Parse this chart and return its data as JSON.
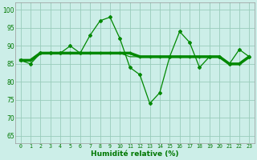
{
  "x": [
    0,
    1,
    2,
    3,
    4,
    5,
    6,
    7,
    8,
    9,
    10,
    11,
    12,
    13,
    14,
    15,
    16,
    17,
    18,
    19,
    20,
    21,
    22,
    23
  ],
  "series_jagged": [
    86,
    85,
    88,
    88,
    88,
    90,
    88,
    93,
    97,
    98,
    92,
    84,
    82,
    74,
    77,
    87,
    94,
    91,
    84,
    87,
    87,
    85,
    89,
    87
  ],
  "series_thick": [
    86,
    86,
    88,
    88,
    88,
    88,
    88,
    88,
    88,
    88,
    88,
    88,
    87,
    87,
    87,
    87,
    87,
    87,
    87,
    87,
    87,
    85,
    85,
    87
  ],
  "series_thin": [
    86,
    86,
    88,
    88,
    88,
    88,
    88,
    88,
    88,
    88,
    88,
    87,
    87,
    87,
    87,
    87,
    87,
    87,
    87,
    87,
    87,
    85,
    85,
    87
  ],
  "xlabel": "Humidité relative (%)",
  "yticks": [
    65,
    70,
    75,
    80,
    85,
    90,
    95,
    100
  ],
  "ylim": [
    63,
    102
  ],
  "xlim": [
    -0.5,
    23.5
  ],
  "line_color": "#008800",
  "bg_color": "#cceee8",
  "grid_color": "#99ccbb",
  "tick_color": "#007700"
}
